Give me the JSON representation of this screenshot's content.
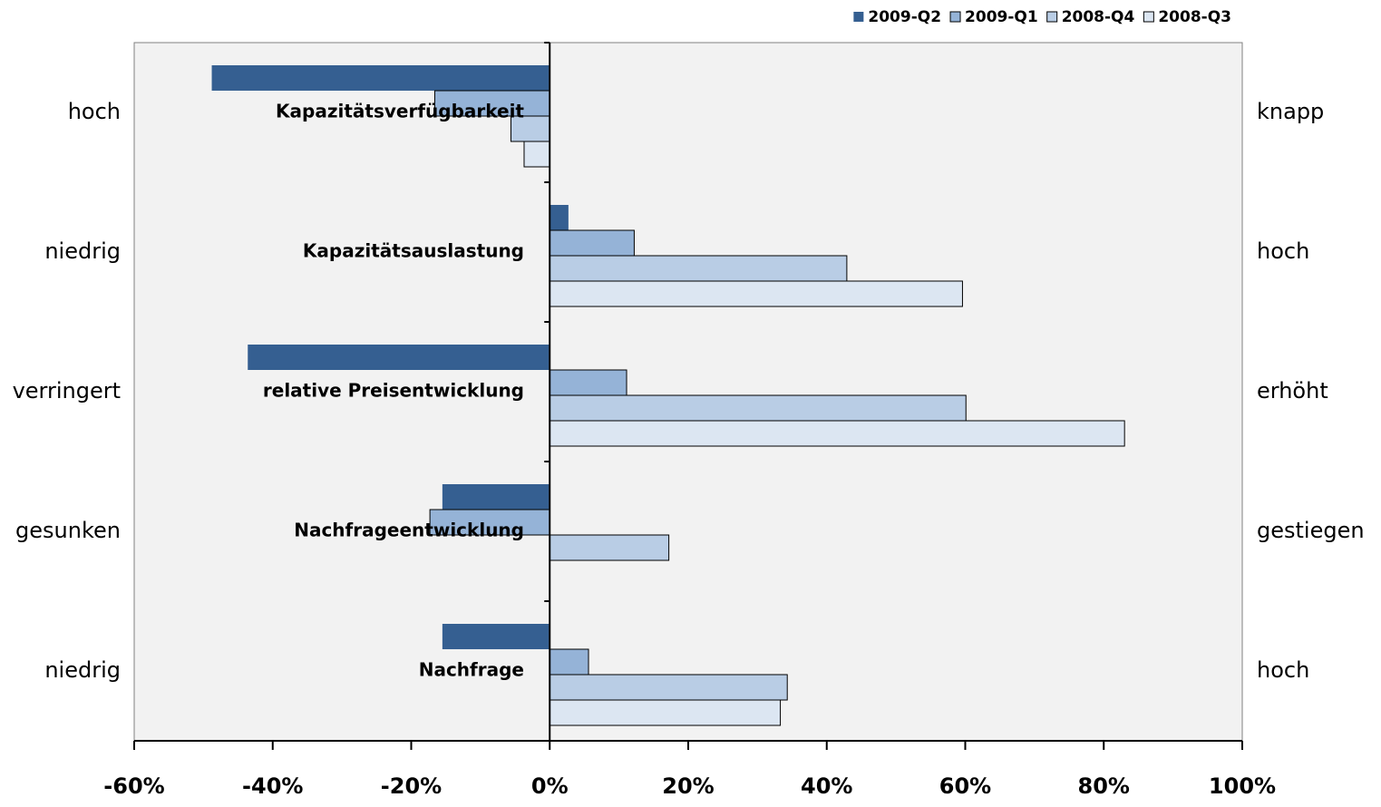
{
  "chart_data": {
    "type": "bar",
    "orientation": "horizontal",
    "categories": [
      "Kapazitätsverfügbarkeit",
      "Kapazitätsauslastung",
      "relative Preisentwicklung",
      "Nachfrageentwicklung",
      "Nachfrage"
    ],
    "left_labels": [
      "hoch",
      "niedrig",
      "verringert",
      "gesunken",
      "niedrig"
    ],
    "right_labels": [
      "knapp",
      "hoch",
      "erhöht",
      "gestiegen",
      "hoch"
    ],
    "series": [
      {
        "name": "2009-Q2",
        "color": "#355f91",
        "values": [
          -48.8,
          2.7,
          -43.6,
          -15.5,
          -15.5
        ]
      },
      {
        "name": "2009-Q1",
        "color": "#95b3d7",
        "values": [
          -16.6,
          12.2,
          11.1,
          -17.3,
          5.6
        ]
      },
      {
        "name": "2008-Q4",
        "color": "#b9cde5",
        "values": [
          -5.6,
          42.9,
          60.1,
          17.2,
          34.3
        ]
      },
      {
        "name": "2008-Q3",
        "color": "#dce6f2",
        "values": [
          -3.7,
          59.6,
          83.0,
          0,
          33.3
        ]
      }
    ],
    "xlim": [
      -60,
      100
    ],
    "xticks": [
      {
        "value": -60,
        "label": "-60%"
      },
      {
        "value": -40,
        "label": "-40%"
      },
      {
        "value": -20,
        "label": "-20%"
      },
      {
        "value": 0,
        "label": "0%"
      },
      {
        "value": 20,
        "label": "20%"
      },
      {
        "value": 40,
        "label": "40%"
      },
      {
        "value": 60,
        "label": "60%"
      },
      {
        "value": 80,
        "label": "80%"
      },
      {
        "value": 100,
        "label": "100%"
      }
    ],
    "legend": "top-right"
  }
}
